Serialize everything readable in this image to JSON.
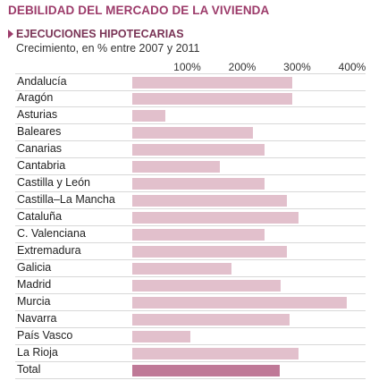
{
  "header": {
    "title": "DEBILIDAD DEL MERCADO DE LA VIVIENDA",
    "subtitle": "EJECUCIONES HIPOTECARIAS",
    "caption": "Crecimiento, en % entre 2007 y 2011"
  },
  "colors": {
    "title": "#9c3b6a",
    "bar": "#e2c0cc",
    "bar_total": "#bf7997",
    "row_rule": "#d8d8d8"
  },
  "chart_data": {
    "type": "bar",
    "orientation": "horizontal",
    "title": "EJECUCIONES HIPOTECARIAS",
    "subtitle": "Crecimiento, en % entre 2007 y 2011",
    "xlim": [
      0,
      400
    ],
    "ticks": [
      100,
      200,
      300,
      400
    ],
    "tick_labels": [
      "100%",
      "200%",
      "300%",
      "400%"
    ],
    "grid": false,
    "legend": "none",
    "categories": [
      "Andalucía",
      "Aragón",
      "Asturias",
      "Baleares",
      "Canarias",
      "Cantabria",
      "Castilla y León",
      "Castilla–La Mancha",
      "Cataluña",
      "C. Valenciana",
      "Extremadura",
      "Galicia",
      "Madrid",
      "Murcia",
      "Navarra",
      "País Vasco",
      "La Rioja",
      "Total"
    ],
    "values": [
      291,
      291,
      60,
      220,
      240,
      160,
      240,
      281,
      302,
      241,
      282,
      181,
      270,
      391,
      286,
      105,
      303,
      268
    ]
  }
}
